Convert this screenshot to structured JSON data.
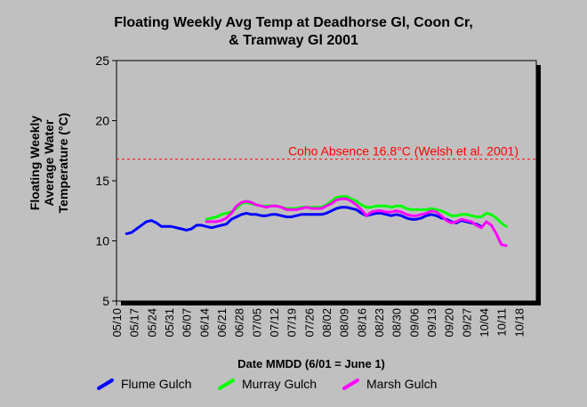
{
  "title_line1": "Floating Weekly Avg Temp at Deadhorse Gl, Coon Cr,",
  "title_line2": "& Tramway Gl 2001",
  "chart_data": {
    "type": "line",
    "title": "Floating Weekly Avg Temp at Deadhorse Gl, Coon Cr, & Tramway Gl 2001",
    "xlabel": "Date MMDD (6/01 = June 1)",
    "ylabel_lines": [
      "Floating Weekly",
      "Average Water",
      "Temperature (°C)"
    ],
    "ylim": [
      5,
      25
    ],
    "yticks": [
      5,
      10,
      15,
      20,
      25
    ],
    "xlim": [
      "05/10",
      "10/25"
    ],
    "xticks": [
      "05/10",
      "05/17",
      "05/24",
      "05/31",
      "06/07",
      "06/14",
      "06/21",
      "06/28",
      "07/05",
      "07/12",
      "07/19",
      "07/26",
      "08/02",
      "08/09",
      "08/16",
      "08/23",
      "08/30",
      "09/06",
      "09/13",
      "09/20",
      "09/27",
      "10/04",
      "10/11",
      "10/18"
    ],
    "grid": false,
    "legend_position": "bottom",
    "reference_line": {
      "y": 16.8,
      "label": "Coho Absence 16.8°C (Welsh et al. 2001)",
      "color": "#ff0000"
    },
    "series": [
      {
        "name": "Flume Gulch",
        "color": "#0000ff",
        "points": [
          [
            "05/14",
            10.6
          ],
          [
            "05/16",
            10.7
          ],
          [
            "05/18",
            11.0
          ],
          [
            "05/20",
            11.3
          ],
          [
            "05/22",
            11.6
          ],
          [
            "05/24",
            11.7
          ],
          [
            "05/26",
            11.5
          ],
          [
            "05/28",
            11.2
          ],
          [
            "05/30",
            11.2
          ],
          [
            "06/01",
            11.2
          ],
          [
            "06/03",
            11.1
          ],
          [
            "06/05",
            11.0
          ],
          [
            "06/07",
            10.9
          ],
          [
            "06/09",
            11.0
          ],
          [
            "06/11",
            11.3
          ],
          [
            "06/13",
            11.3
          ],
          [
            "06/15",
            11.2
          ],
          [
            "06/17",
            11.1
          ],
          [
            "06/19",
            11.2
          ],
          [
            "06/21",
            11.3
          ],
          [
            "06/23",
            11.4
          ],
          [
            "06/25",
            11.8
          ],
          [
            "06/27",
            12.0
          ],
          [
            "06/29",
            12.2
          ],
          [
            "07/01",
            12.3
          ],
          [
            "07/03",
            12.2
          ],
          [
            "07/05",
            12.2
          ],
          [
            "07/07",
            12.1
          ],
          [
            "07/09",
            12.1
          ],
          [
            "07/11",
            12.2
          ],
          [
            "07/13",
            12.2
          ],
          [
            "07/15",
            12.1
          ],
          [
            "07/17",
            12.0
          ],
          [
            "07/19",
            12.0
          ],
          [
            "07/21",
            12.1
          ],
          [
            "07/23",
            12.2
          ],
          [
            "07/25",
            12.2
          ],
          [
            "07/27",
            12.2
          ],
          [
            "07/29",
            12.2
          ],
          [
            "07/31",
            12.2
          ],
          [
            "08/02",
            12.3
          ],
          [
            "08/04",
            12.5
          ],
          [
            "08/06",
            12.7
          ],
          [
            "08/08",
            12.8
          ],
          [
            "08/10",
            12.8
          ],
          [
            "08/12",
            12.7
          ],
          [
            "08/14",
            12.6
          ],
          [
            "08/16",
            12.3
          ],
          [
            "08/18",
            12.1
          ],
          [
            "08/20",
            12.2
          ],
          [
            "08/22",
            12.3
          ],
          [
            "08/24",
            12.3
          ],
          [
            "08/26",
            12.2
          ],
          [
            "08/28",
            12.1
          ],
          [
            "08/30",
            12.2
          ],
          [
            "09/01",
            12.1
          ],
          [
            "09/03",
            11.9
          ],
          [
            "09/05",
            11.8
          ],
          [
            "09/07",
            11.8
          ],
          [
            "09/09",
            11.9
          ],
          [
            "09/11",
            12.1
          ],
          [
            "09/13",
            12.2
          ],
          [
            "09/15",
            12.1
          ],
          [
            "09/17",
            11.9
          ],
          [
            "09/19",
            11.8
          ],
          [
            "09/21",
            11.6
          ],
          [
            "09/23",
            11.5
          ],
          [
            "09/25",
            11.7
          ],
          [
            "09/27",
            11.6
          ],
          [
            "09/29",
            11.5
          ],
          [
            "10/01",
            11.4
          ],
          [
            "10/03",
            11.2
          ]
        ]
      },
      {
        "name": "Murray Gulch",
        "color": "#00ff00",
        "points": [
          [
            "06/15",
            11.8
          ],
          [
            "06/17",
            11.9
          ],
          [
            "06/19",
            12.0
          ],
          [
            "06/21",
            12.2
          ],
          [
            "06/23",
            12.3
          ],
          [
            "06/25",
            12.4
          ],
          [
            "06/27",
            12.7
          ],
          [
            "06/29",
            13.1
          ],
          [
            "07/01",
            13.2
          ],
          [
            "07/03",
            13.1
          ],
          [
            "07/05",
            13.0
          ],
          [
            "07/07",
            12.9
          ],
          [
            "07/09",
            12.9
          ],
          [
            "07/11",
            12.9
          ],
          [
            "07/13",
            12.9
          ],
          [
            "07/15",
            12.8
          ],
          [
            "07/17",
            12.7
          ],
          [
            "07/19",
            12.7
          ],
          [
            "07/21",
            12.7
          ],
          [
            "07/23",
            12.8
          ],
          [
            "07/25",
            12.8
          ],
          [
            "07/27",
            12.8
          ],
          [
            "07/29",
            12.8
          ],
          [
            "07/31",
            12.8
          ],
          [
            "08/02",
            13.0
          ],
          [
            "08/04",
            13.3
          ],
          [
            "08/06",
            13.6
          ],
          [
            "08/08",
            13.7
          ],
          [
            "08/10",
            13.7
          ],
          [
            "08/12",
            13.5
          ],
          [
            "08/14",
            13.3
          ],
          [
            "08/16",
            13.0
          ],
          [
            "08/18",
            12.8
          ],
          [
            "08/20",
            12.8
          ],
          [
            "08/22",
            12.9
          ],
          [
            "08/24",
            12.9
          ],
          [
            "08/26",
            12.9
          ],
          [
            "08/28",
            12.8
          ],
          [
            "08/30",
            12.9
          ],
          [
            "09/01",
            12.9
          ],
          [
            "09/03",
            12.7
          ],
          [
            "09/05",
            12.6
          ],
          [
            "09/07",
            12.6
          ],
          [
            "09/09",
            12.6
          ],
          [
            "09/11",
            12.6
          ],
          [
            "09/13",
            12.7
          ],
          [
            "09/15",
            12.6
          ],
          [
            "09/17",
            12.5
          ],
          [
            "09/19",
            12.3
          ],
          [
            "09/21",
            12.1
          ],
          [
            "09/23",
            12.1
          ],
          [
            "09/25",
            12.2
          ],
          [
            "09/27",
            12.2
          ],
          [
            "09/29",
            12.1
          ],
          [
            "10/01",
            12.0
          ],
          [
            "10/03",
            12.0
          ],
          [
            "10/05",
            12.3
          ],
          [
            "10/07",
            12.2
          ],
          [
            "10/09",
            11.9
          ],
          [
            "10/11",
            11.5
          ],
          [
            "10/13",
            11.2
          ]
        ]
      },
      {
        "name": "Marsh Gulch",
        "color": "#ff00ff",
        "points": [
          [
            "06/15",
            11.6
          ],
          [
            "06/17",
            11.6
          ],
          [
            "06/19",
            11.6
          ],
          [
            "06/21",
            11.7
          ],
          [
            "06/23",
            11.9
          ],
          [
            "06/25",
            12.3
          ],
          [
            "06/27",
            12.9
          ],
          [
            "06/29",
            13.2
          ],
          [
            "07/01",
            13.3
          ],
          [
            "07/03",
            13.2
          ],
          [
            "07/05",
            13.0
          ],
          [
            "07/07",
            12.9
          ],
          [
            "07/09",
            12.8
          ],
          [
            "07/11",
            12.9
          ],
          [
            "07/13",
            12.9
          ],
          [
            "07/15",
            12.8
          ],
          [
            "07/17",
            12.6
          ],
          [
            "07/19",
            12.6
          ],
          [
            "07/21",
            12.6
          ],
          [
            "07/23",
            12.7
          ],
          [
            "07/25",
            12.8
          ],
          [
            "07/27",
            12.7
          ],
          [
            "07/29",
            12.7
          ],
          [
            "07/31",
            12.7
          ],
          [
            "08/02",
            12.9
          ],
          [
            "08/04",
            13.1
          ],
          [
            "08/06",
            13.4
          ],
          [
            "08/08",
            13.5
          ],
          [
            "08/10",
            13.5
          ],
          [
            "08/12",
            13.3
          ],
          [
            "08/14",
            13.0
          ],
          [
            "08/16",
            12.6
          ],
          [
            "08/18",
            12.1
          ],
          [
            "08/20",
            12.4
          ],
          [
            "08/22",
            12.5
          ],
          [
            "08/24",
            12.5
          ],
          [
            "08/26",
            12.4
          ],
          [
            "08/28",
            12.4
          ],
          [
            "08/30",
            12.5
          ],
          [
            "09/01",
            12.4
          ],
          [
            "09/03",
            12.2
          ],
          [
            "09/05",
            12.1
          ],
          [
            "09/07",
            12.1
          ],
          [
            "09/09",
            12.2
          ],
          [
            "09/11",
            12.3
          ],
          [
            "09/13",
            12.5
          ],
          [
            "09/15",
            12.4
          ],
          [
            "09/17",
            12.1
          ],
          [
            "09/19",
            11.7
          ],
          [
            "09/21",
            11.5
          ],
          [
            "09/23",
            11.6
          ],
          [
            "09/25",
            11.8
          ],
          [
            "09/27",
            11.7
          ],
          [
            "09/29",
            11.6
          ],
          [
            "10/01",
            11.3
          ],
          [
            "10/03",
            11.1
          ],
          [
            "10/05",
            11.6
          ],
          [
            "10/07",
            11.3
          ],
          [
            "10/09",
            10.6
          ],
          [
            "10/11",
            9.7
          ],
          [
            "10/13",
            9.6
          ]
        ]
      }
    ]
  }
}
